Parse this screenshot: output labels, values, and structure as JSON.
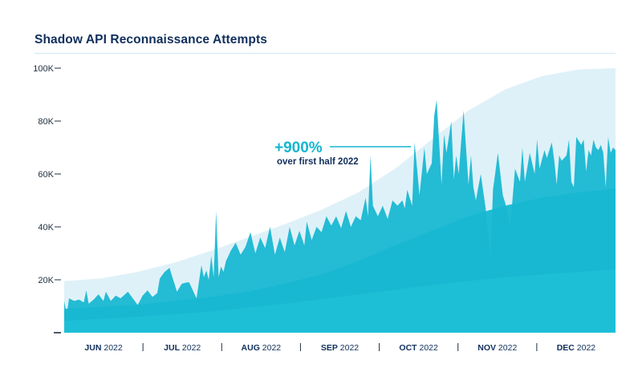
{
  "title": "Shadow API Reconnaissance Attempts",
  "annotation": {
    "value": "+900%",
    "text": "over first half 2022"
  },
  "colors": {
    "title": "#0f2f5c",
    "light_band": "#dff1f8",
    "mid_band": "#1cbad3",
    "daily_series": "#14b6d0",
    "trend_base": "#1fc3d8",
    "annotation": "#14b6d0"
  },
  "chart_data": {
    "type": "area",
    "title": "Shadow API Reconnaissance Attempts",
    "xlabel": "",
    "ylabel": "",
    "ylim": [
      0,
      100000
    ],
    "y_ticks": [
      0,
      20000,
      40000,
      60000,
      80000,
      100000
    ],
    "y_tick_labels": [
      "",
      "20K",
      "40K",
      "60K",
      "80K",
      "100K"
    ],
    "x_tick_labels": [
      {
        "month": "JUN",
        "year": "2022"
      },
      {
        "month": "JUL",
        "year": "2022"
      },
      {
        "month": "AUG",
        "year": "2022"
      },
      {
        "month": "SEP",
        "year": "2022"
      },
      {
        "month": "OCT",
        "year": "2022"
      },
      {
        "month": "NOV",
        "year": "2022"
      },
      {
        "month": "DEC",
        "year": "2022"
      }
    ],
    "grid": false,
    "legend": "none",
    "daily_keyframes": [
      [
        0,
        12000
      ],
      [
        1,
        7000
      ],
      [
        2,
        13000
      ],
      [
        4,
        12000
      ],
      [
        6,
        12500
      ],
      [
        8,
        11500
      ],
      [
        9,
        16000
      ],
      [
        10,
        11000
      ],
      [
        12,
        12500
      ],
      [
        14,
        14500
      ],
      [
        16,
        12000
      ],
      [
        17,
        15500
      ],
      [
        19,
        12000
      ],
      [
        21,
        14000
      ],
      [
        23,
        13000
      ],
      [
        26,
        15500
      ],
      [
        28,
        13000
      ],
      [
        30,
        10500
      ],
      [
        32,
        14000
      ],
      [
        34,
        16000
      ],
      [
        36,
        13500
      ],
      [
        38,
        15000
      ],
      [
        39,
        20500
      ],
      [
        41,
        23000
      ],
      [
        43,
        24500
      ],
      [
        45,
        18500
      ],
      [
        46,
        15500
      ],
      [
        48,
        18500
      ],
      [
        50,
        19000
      ],
      [
        51,
        19000
      ],
      [
        52,
        17000
      ],
      [
        54,
        13000
      ],
      [
        56,
        25500
      ],
      [
        57,
        21000
      ],
      [
        58,
        23500
      ],
      [
        59,
        20000
      ],
      [
        60,
        29000
      ],
      [
        61,
        21000
      ],
      [
        62,
        46000
      ],
      [
        63,
        21000
      ],
      [
        64,
        25000
      ],
      [
        65,
        23000
      ],
      [
        66,
        27000
      ],
      [
        68,
        31000
      ],
      [
        70,
        34000
      ],
      [
        72,
        29500
      ],
      [
        74,
        32500
      ],
      [
        76,
        38000
      ],
      [
        78,
        30000
      ],
      [
        80,
        36000
      ],
      [
        82,
        32000
      ],
      [
        84,
        40000
      ],
      [
        86,
        29500
      ],
      [
        88,
        36000
      ],
      [
        90,
        30500
      ],
      [
        92,
        40000
      ],
      [
        94,
        33000
      ],
      [
        96,
        38500
      ],
      [
        98,
        33000
      ],
      [
        99,
        42000
      ],
      [
        101,
        35000
      ],
      [
        103,
        40000
      ],
      [
        105,
        38000
      ],
      [
        107,
        44000
      ],
      [
        109,
        40500
      ],
      [
        111,
        44000
      ],
      [
        113,
        39500
      ],
      [
        115,
        46000
      ],
      [
        117,
        40000
      ],
      [
        119,
        44000
      ],
      [
        121,
        42500
      ],
      [
        123,
        51000
      ],
      [
        124,
        44000
      ],
      [
        125,
        67000
      ],
      [
        126,
        48000
      ],
      [
        128,
        44000
      ],
      [
        130,
        48000
      ],
      [
        132,
        43000
      ],
      [
        134,
        50000
      ],
      [
        136,
        48000
      ],
      [
        138,
        50000
      ],
      [
        139,
        47000
      ],
      [
        140,
        54000
      ],
      [
        142,
        48000
      ],
      [
        143,
        72000
      ],
      [
        145,
        52000
      ],
      [
        147,
        70000
      ],
      [
        148,
        60000
      ],
      [
        150,
        64000
      ],
      [
        151,
        82000
      ],
      [
        152,
        88000
      ],
      [
        154,
        56000
      ],
      [
        155,
        75000
      ],
      [
        156,
        68000
      ],
      [
        158,
        80000
      ],
      [
        159,
        58000
      ],
      [
        160,
        67000
      ],
      [
        161,
        60000
      ],
      [
        163,
        84000
      ],
      [
        165,
        56000
      ],
      [
        166,
        67000
      ],
      [
        167,
        55000
      ],
      [
        168,
        50000
      ],
      [
        170,
        60000
      ],
      [
        172,
        47000
      ],
      [
        174,
        29000
      ],
      [
        175,
        54000
      ],
      [
        177,
        68000
      ],
      [
        179,
        52000
      ],
      [
        180,
        49000
      ],
      [
        182,
        40000
      ],
      [
        184,
        62000
      ],
      [
        186,
        57000
      ],
      [
        187,
        70000
      ],
      [
        188,
        57000
      ],
      [
        190,
        68000
      ],
      [
        192,
        60000
      ],
      [
        193,
        73000
      ],
      [
        194,
        62000
      ],
      [
        196,
        69000
      ],
      [
        197,
        66000
      ],
      [
        199,
        72000
      ],
      [
        200,
        65000
      ],
      [
        201,
        56000
      ],
      [
        202,
        67000
      ],
      [
        203,
        65000
      ],
      [
        205,
        67000
      ],
      [
        206,
        73000
      ],
      [
        207,
        57000
      ],
      [
        208,
        55000
      ],
      [
        209,
        74000
      ],
      [
        211,
        71000
      ],
      [
        212,
        73000
      ],
      [
        213,
        61000
      ],
      [
        214,
        69000
      ],
      [
        215,
        67000
      ],
      [
        216,
        73000
      ],
      [
        217,
        70000
      ],
      [
        218,
        69000
      ],
      [
        219,
        71000
      ],
      [
        220,
        68000
      ],
      [
        221,
        55000
      ],
      [
        222,
        74000
      ],
      [
        223,
        68000
      ],
      [
        224,
        70000
      ],
      [
        225,
        69000
      ]
    ],
    "light_band_keyframes": [
      [
        0,
        19500
      ],
      [
        15,
        20500
      ],
      [
        30,
        23000
      ],
      [
        45,
        26500
      ],
      [
        60,
        31000
      ],
      [
        75,
        36000
      ],
      [
        90,
        41000
      ],
      [
        105,
        46500
      ],
      [
        120,
        53000
      ],
      [
        135,
        62000
      ],
      [
        150,
        73000
      ],
      [
        165,
        84000
      ],
      [
        180,
        92000
      ],
      [
        195,
        97000
      ],
      [
        210,
        99500
      ],
      [
        225,
        100000
      ]
    ],
    "mid_band_keyframes": [
      [
        0,
        9000
      ],
      [
        15,
        9800
      ],
      [
        30,
        10500
      ],
      [
        45,
        12000
      ],
      [
        60,
        13500
      ],
      [
        75,
        15500
      ],
      [
        90,
        18500
      ],
      [
        105,
        22000
      ],
      [
        120,
        27000
      ],
      [
        135,
        33000
      ],
      [
        150,
        38500
      ],
      [
        165,
        44000
      ],
      [
        180,
        48000
      ],
      [
        195,
        51000
      ],
      [
        210,
        53000
      ],
      [
        225,
        54500
      ]
    ],
    "trend_base_keyframes": [
      [
        0,
        4500
      ],
      [
        30,
        6000
      ],
      [
        60,
        8000
      ],
      [
        90,
        11000
      ],
      [
        120,
        14500
      ],
      [
        150,
        18000
      ],
      [
        180,
        21000
      ],
      [
        210,
        23000
      ],
      [
        225,
        24000
      ]
    ]
  }
}
